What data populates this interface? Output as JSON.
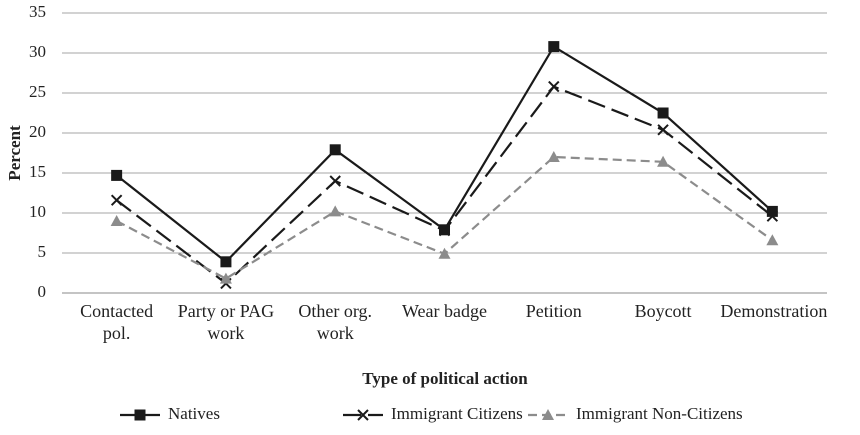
{
  "chart_data": {
    "type": "line",
    "categories": [
      "Contacted pol.",
      "Party or PAG work",
      "Other org. work",
      "Wear badge",
      "Petition",
      "Boycott",
      "Demonstration"
    ],
    "series": [
      {
        "name": "Natives",
        "color": "#1a1a1a",
        "marker": "square",
        "dash": "solid",
        "values": [
          14.7,
          3.9,
          17.9,
          7.9,
          30.8,
          22.5,
          10.2
        ]
      },
      {
        "name": "Immigrant Citizens",
        "color": "#1a1a1a",
        "marker": "x",
        "dash": "long",
        "values": [
          11.6,
          1.2,
          14.0,
          7.8,
          25.8,
          20.4,
          9.6
        ]
      },
      {
        "name": "Immigrant Non-Citizens",
        "color": "#8c8c8c",
        "marker": "triangle",
        "dash": "short",
        "values": [
          9.0,
          1.8,
          10.2,
          4.9,
          17.0,
          16.4,
          6.6
        ]
      }
    ],
    "ylabel": "Percent",
    "xlabel": "Type of political action",
    "ylim": [
      0,
      35
    ],
    "yticks": [
      0,
      5,
      10,
      15,
      20,
      25,
      30,
      35
    ],
    "grid": true,
    "legend": "bottom"
  }
}
